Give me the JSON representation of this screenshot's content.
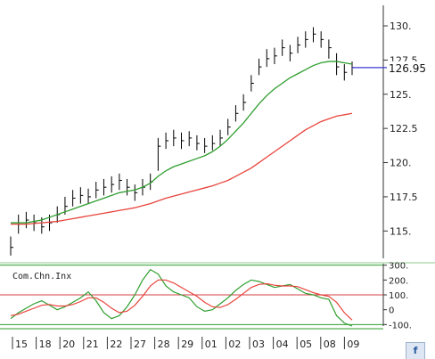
{
  "chart_data": [
    {
      "type": "line",
      "title": "",
      "subtitle": "",
      "ylim": [
        113,
        131.5
      ],
      "yticks": [
        "130.",
        "127.5",
        "125.",
        "122.5",
        "120.",
        "117.5",
        "115."
      ],
      "ytick_values": [
        130,
        127.5,
        125,
        122.5,
        120,
        117.5,
        115
      ],
      "last_price_label": "126.95",
      "last_price": 126.95,
      "x_labels": [
        "15",
        "18",
        "20",
        "21",
        "22",
        "27",
        "28",
        "29",
        "01",
        "02",
        "03",
        "04",
        "05",
        "08",
        "09"
      ],
      "series": [
        {
          "style": "ohlc",
          "color": "#000000",
          "values": [
            113.8,
            115.5,
            115.8,
            115.6,
            115.3,
            115.6,
            116.2,
            116.8,
            117.4,
            117.6,
            117.5,
            118.0,
            118.2,
            118.4,
            118.7,
            118.2,
            117.8,
            118.2,
            118.6,
            121.2,
            121.6,
            121.8,
            121.6,
            121.8,
            121.4,
            121.2,
            121.4,
            121.8,
            122.6,
            123.6,
            124.4,
            125.8,
            127.0,
            127.6,
            127.8,
            128.4,
            128.0,
            128.6,
            129.0,
            129.4,
            129.0,
            128.4,
            127.0,
            126.6,
            126.95
          ],
          "high": [
            114.6,
            116.2,
            116.4,
            116.2,
            116.0,
            116.2,
            116.8,
            117.5,
            118.0,
            118.2,
            118.1,
            118.6,
            118.8,
            119.0,
            119.2,
            118.8,
            118.4,
            118.8,
            119.2,
            121.8,
            122.2,
            122.4,
            122.2,
            122.3,
            122.0,
            121.8,
            122.0,
            122.4,
            123.2,
            124.2,
            125.0,
            126.4,
            127.6,
            128.3,
            128.4,
            129.0,
            128.6,
            129.2,
            129.6,
            129.9,
            129.6,
            129.0,
            128.0,
            127.2,
            127.4
          ],
          "low": [
            113.2,
            114.8,
            115.2,
            115.0,
            114.8,
            115.0,
            115.6,
            116.2,
            116.8,
            117.0,
            117.0,
            117.4,
            117.6,
            117.8,
            118.0,
            117.6,
            117.2,
            117.6,
            118.0,
            119.4,
            121.0,
            121.2,
            121.0,
            121.2,
            120.9,
            120.7,
            120.9,
            121.2,
            122.0,
            123.0,
            123.8,
            125.2,
            126.4,
            127.0,
            127.2,
            127.8,
            127.4,
            128.0,
            128.4,
            128.8,
            128.4,
            127.6,
            126.4,
            126.0,
            126.4
          ]
        },
        {
          "style": "line",
          "color": "#2e9e2e",
          "values": [
            115.6,
            115.6,
            115.6,
            115.7,
            115.8,
            116.0,
            116.2,
            116.4,
            116.6,
            116.8,
            117.0,
            117.2,
            117.4,
            117.6,
            117.8,
            117.9,
            118.0,
            118.2,
            118.5,
            119.0,
            119.4,
            119.7,
            119.9,
            120.1,
            120.3,
            120.5,
            120.8,
            121.2,
            121.7,
            122.3,
            122.9,
            123.6,
            124.3,
            124.9,
            125.4,
            125.8,
            126.2,
            126.5,
            126.8,
            127.1,
            127.3,
            127.4,
            127.4,
            127.3,
            127.2
          ]
        },
        {
          "style": "line",
          "color": "#e8443c",
          "values": [
            115.5,
            115.5,
            115.5,
            115.55,
            115.6,
            115.65,
            115.7,
            115.8,
            115.9,
            116.0,
            116.1,
            116.2,
            116.3,
            116.4,
            116.5,
            116.6,
            116.7,
            116.85,
            117.0,
            117.2,
            117.4,
            117.55,
            117.7,
            117.85,
            118.0,
            118.15,
            118.3,
            118.5,
            118.7,
            119.0,
            119.3,
            119.6,
            120.0,
            120.4,
            120.8,
            121.2,
            121.6,
            122.0,
            122.4,
            122.7,
            123.0,
            123.2,
            123.4,
            123.5,
            123.6
          ]
        }
      ]
    },
    {
      "type": "line",
      "indicator_label": "Com.Chn.Inx",
      "ylim": [
        -110,
        310
      ],
      "yticks": [
        "300.",
        "200.",
        "100.",
        "0",
        "-100."
      ],
      "ytick_values": [
        300,
        200,
        100,
        0,
        -100
      ],
      "series": [
        {
          "style": "line",
          "color": "#2e9e2e",
          "values": [
            -60,
            -20,
            10,
            40,
            60,
            30,
            0,
            20,
            50,
            80,
            120,
            60,
            -20,
            -60,
            -40,
            20,
            100,
            200,
            270,
            240,
            160,
            120,
            100,
            80,
            20,
            -10,
            0,
            40,
            80,
            130,
            170,
            200,
            190,
            170,
            150,
            160,
            170,
            140,
            110,
            100,
            80,
            70,
            -40,
            -90,
            -110
          ]
        },
        {
          "style": "line",
          "color": "#e8443c",
          "values": [
            -40,
            -30,
            -10,
            10,
            30,
            35,
            25,
            25,
            35,
            55,
            80,
            80,
            50,
            10,
            -20,
            -10,
            30,
            90,
            160,
            200,
            200,
            180,
            150,
            120,
            90,
            50,
            20,
            15,
            35,
            70,
            110,
            150,
            170,
            175,
            165,
            160,
            160,
            155,
            135,
            115,
            100,
            90,
            50,
            -20,
            -70
          ]
        }
      ],
      "reference_lines": [
        {
          "value": 300,
          "color": "#2e9e2e"
        },
        {
          "value": 100,
          "color": "#d04040"
        },
        {
          "value": -100,
          "color": "#2e9e2e"
        }
      ]
    }
  ]
}
